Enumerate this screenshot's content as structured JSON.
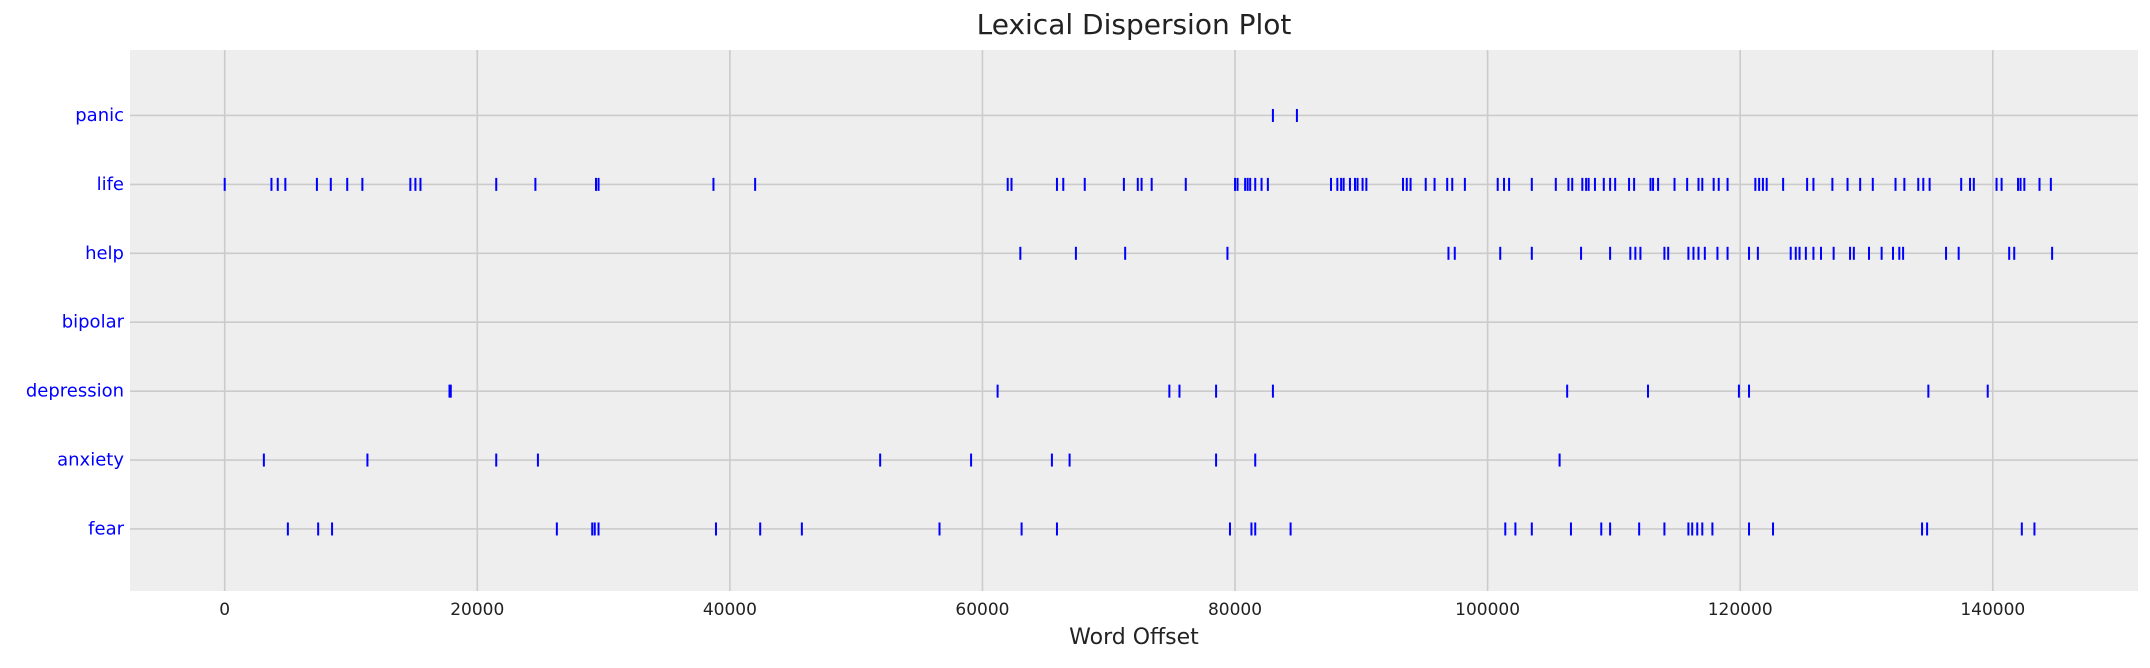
{
  "chart_data": {
    "type": "scatter",
    "title": "Lexical Dispersion Plot",
    "xlabel": "Word Offset",
    "ylabel": "",
    "xlim": [
      -7500,
      151500
    ],
    "ylim": [
      -0.9,
      6.95
    ],
    "grid": true,
    "x_ticks": [
      0,
      20000,
      40000,
      60000,
      80000,
      100000,
      120000,
      140000
    ],
    "x_tick_labels": [
      "0",
      "20000",
      "40000",
      "60000",
      "80000",
      "100000",
      "120000",
      "140000"
    ],
    "colors": {
      "background": "#eeeeee",
      "grid": "#cbcbcb",
      "marker": "#0000ff",
      "label": "#0000ff",
      "text": "#222222"
    },
    "series": [
      {
        "word": "panic",
        "offsets": [
          83000,
          84900
        ]
      },
      {
        "word": "life",
        "offsets": [
          0,
          3700,
          4200,
          4800,
          7300,
          8400,
          9700,
          10900,
          14700,
          15100,
          15500,
          21500,
          24600,
          29400,
          29600,
          38700,
          42000,
          62000,
          62300,
          65900,
          66400,
          68100,
          71200,
          72300,
          72600,
          73400,
          76100,
          80000,
          80200,
          80800,
          81000,
          81200,
          81600,
          82100,
          82600,
          87600,
          88100,
          88400,
          88600,
          89100,
          89500,
          89700,
          90100,
          90400,
          93300,
          93600,
          93900,
          95100,
          95800,
          96800,
          97200,
          98200,
          100800,
          101300,
          101700,
          103500,
          105400,
          106400,
          106700,
          107500,
          107800,
          108000,
          108500,
          109200,
          109700,
          110100,
          111200,
          111600,
          112900,
          113100,
          113500,
          114800,
          115800,
          116700,
          117000,
          117900,
          118300,
          119000,
          121200,
          121500,
          121800,
          122100,
          123400,
          125300,
          125800,
          127300,
          128500,
          129500,
          130500,
          132300,
          133000,
          134100,
          134500,
          135000,
          137500,
          138200,
          138500,
          140300,
          140700,
          142000,
          142200,
          142500,
          143700,
          144600
        ]
      },
      {
        "word": "help",
        "offsets": [
          63000,
          67400,
          71300,
          79400,
          96900,
          97400,
          101000,
          103500,
          107400,
          109700,
          111300,
          111700,
          112100,
          114000,
          114300,
          115900,
          116300,
          116700,
          117200,
          118200,
          119000,
          120700,
          121400,
          124000,
          124400,
          124700,
          125200,
          125800,
          126400,
          127400,
          128700,
          129000,
          130200,
          131200,
          132100,
          132600,
          132900,
          136300,
          137300,
          141300,
          141700,
          144700
        ]
      },
      {
        "word": "bipolar",
        "offsets": []
      },
      {
        "word": "depression",
        "offsets": [
          17800,
          17900,
          61200,
          74800,
          75600,
          78500,
          83000,
          106300,
          112700,
          119900,
          120700,
          134900,
          139600
        ]
      },
      {
        "word": "anxiety",
        "offsets": [
          3100,
          11300,
          21500,
          24800,
          51900,
          59100,
          65500,
          66900,
          78500,
          81600,
          105700
        ]
      },
      {
        "word": "fear",
        "offsets": [
          5000,
          7400,
          8500,
          26300,
          29100,
          29300,
          29600,
          38900,
          42400,
          45700,
          56600,
          63100,
          65900,
          79600,
          81300,
          81600,
          84400,
          101400,
          102200,
          103500,
          106600,
          109000,
          109700,
          112000,
          114000,
          115900,
          116200,
          116600,
          117000,
          117800,
          120700,
          122600,
          134400,
          134800,
          142300,
          143300
        ]
      }
    ]
  }
}
